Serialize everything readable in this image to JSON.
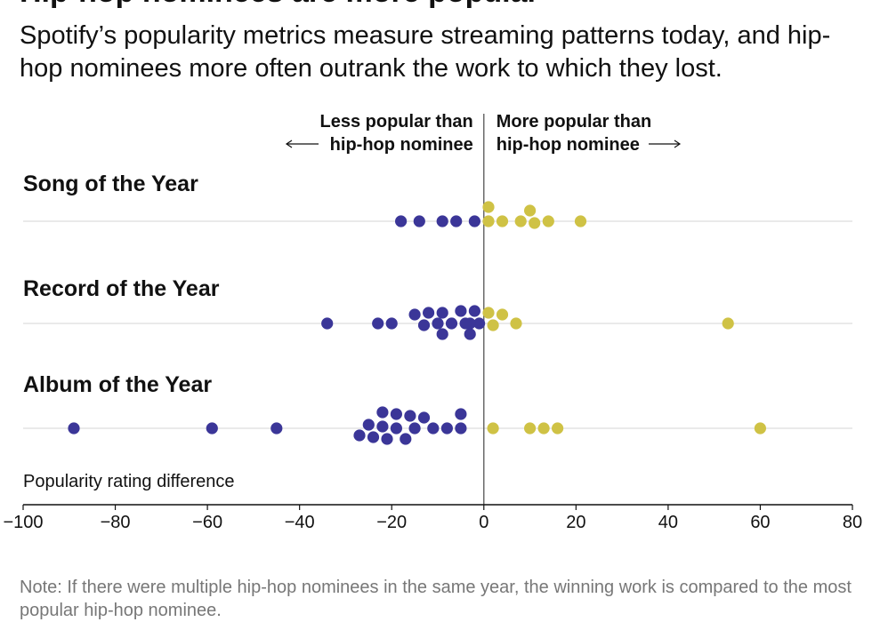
{
  "header": {
    "title": "Hip-hop nominees are more popular",
    "subtitle": "Spotify’s popularity metrics measure streaming patterns today, and hip-hop nominees more often outrank the work to which they lost."
  },
  "note": "Note: If there were multiple hip-hop nominees in the same year, the winning work is compared to the most popular hip-hop nominee.",
  "colors": {
    "less": "#3b3698",
    "more": "#cfc245",
    "zero_line": "#555555",
    "grid_line": "#dddddd",
    "axis_line": "#111111"
  },
  "chart_data": {
    "type": "scatter",
    "subtype": "beeswarm",
    "x_axis_title": "Popularity rating difference",
    "xlim": [
      -100,
      80
    ],
    "x_ticks": [
      -100,
      -80,
      -60,
      -40,
      -20,
      0,
      20,
      40,
      60,
      80
    ],
    "x_tick_labels": [
      "−100",
      "−80",
      "−60",
      "−40",
      "−20",
      "0",
      "20",
      "40",
      "60",
      "80"
    ],
    "direction_labels": {
      "left": [
        "Less popular than",
        "hip-hop nominee"
      ],
      "right": [
        "More popular than",
        "hip-hop nominee"
      ]
    },
    "groups": [
      {
        "name": "Song of the Year",
        "values": [
          -18,
          -14,
          -9,
          -6,
          -2,
          1,
          1,
          4,
          8,
          10,
          11,
          14,
          21
        ]
      },
      {
        "name": "Record of the Year",
        "values": [
          -34,
          -23,
          -20,
          -15,
          -13,
          -12,
          -10,
          -9,
          -9,
          -7,
          -5,
          -4,
          -3,
          -3,
          -2,
          -1,
          1,
          2,
          4,
          7,
          53
        ]
      },
      {
        "name": "Album of the Year",
        "values": [
          -89,
          -59,
          -45,
          -27,
          -25,
          -24,
          -22,
          -22,
          -21,
          -19,
          -19,
          -17,
          -16,
          -15,
          -13,
          -11,
          -8,
          -5,
          -5,
          2,
          10,
          13,
          16,
          60
        ]
      }
    ]
  }
}
